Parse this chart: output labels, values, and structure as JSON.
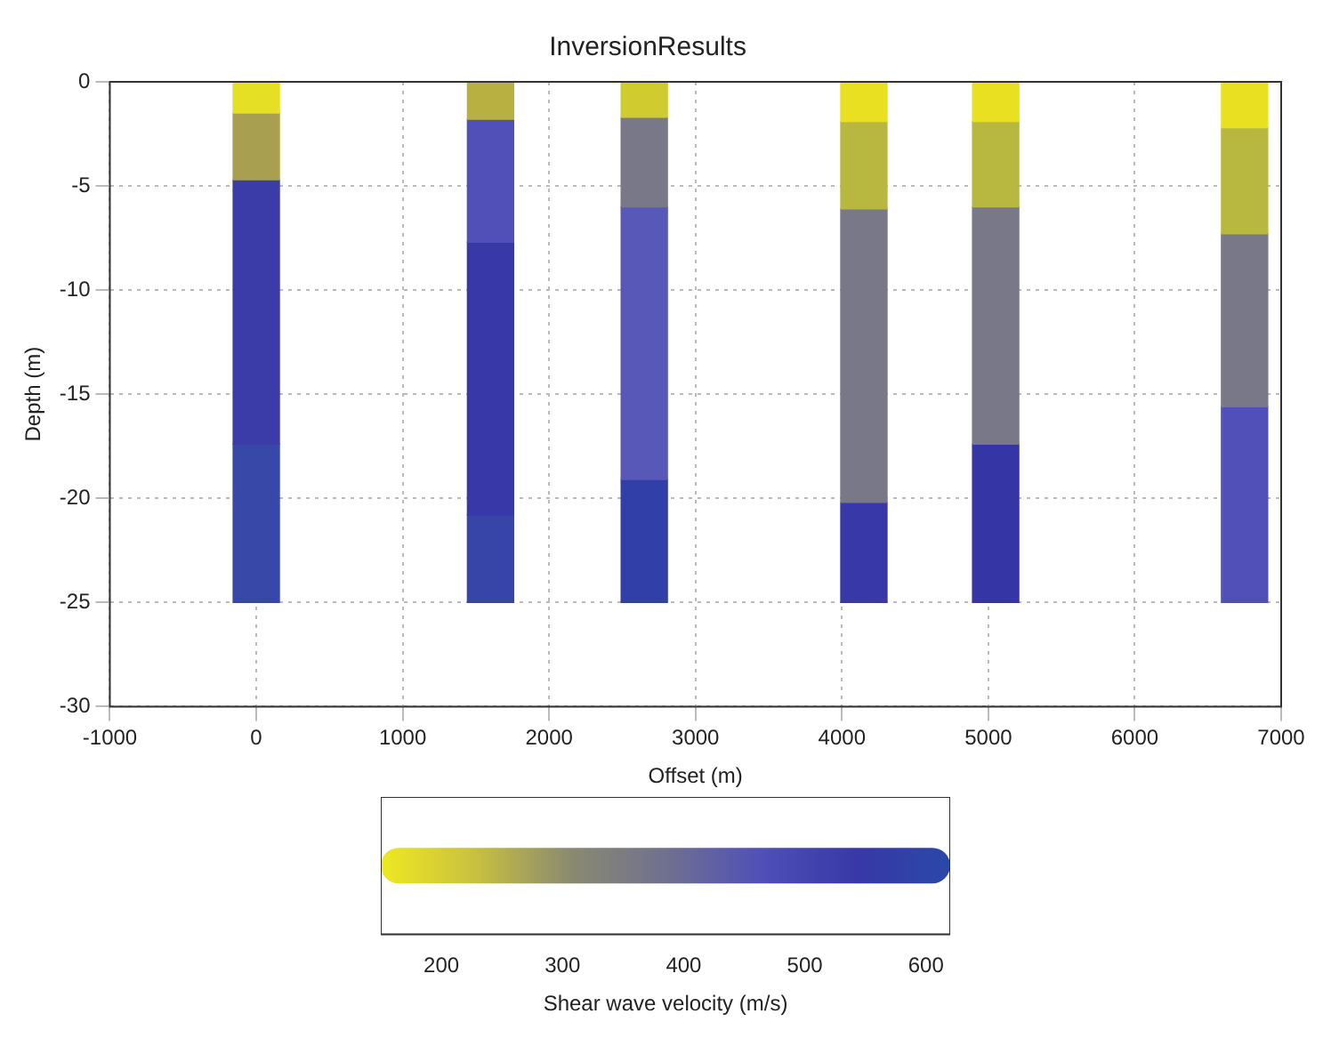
{
  "chart_data": {
    "type": "bar",
    "title": "InversionResults",
    "xlabel": "Offset (m)",
    "ylabel": "Depth (m)",
    "stacked": true,
    "x": [
      0,
      1600,
      2650,
      4150,
      5050,
      6750
    ],
    "series": [
      {
        "values": [
          -1.5,
          -1.8,
          -1.7,
          -1.9,
          -1.9,
          -2.2
        ],
        "colors": [
          "#e6e024",
          "#b8b040",
          "#d0cc30",
          "#e8e020",
          "#e8e020",
          "#e8e020"
        ]
      },
      {
        "values": [
          -3.2,
          -5.9,
          -4.3,
          -4.2,
          -4.1,
          -5.1
        ],
        "colors": [
          "#a8a050",
          "#5050b8",
          "#787888",
          "#b8b840",
          "#b8b840",
          "#b8b840"
        ]
      },
      {
        "values": [
          -12.7,
          -13.1,
          -13.1,
          -14.1,
          -11.4,
          -8.3
        ],
        "colors": [
          "#3c3ca8",
          "#3838a8",
          "#5858b8",
          "#787888",
          "#787888",
          "#787888"
        ]
      },
      {
        "values": [
          -7.6,
          -4.2,
          -5.9,
          -4.8,
          -7.6,
          -9.4
        ],
        "colors": [
          "#3848a8",
          "#3845a8",
          "#3040a8",
          "#3838a8",
          "#3535a5",
          "#5050b8"
        ]
      }
    ],
    "xlim": [
      -1000,
      7000
    ],
    "xticks": [
      -1000,
      0,
      1000,
      2000,
      3000,
      4000,
      5000,
      6000,
      7000
    ],
    "ylim": [
      -30,
      0
    ],
    "yticks": [
      -30,
      -25,
      -20,
      -15,
      -10,
      -5,
      0
    ],
    "grid": true,
    "legend": false,
    "clabel": "Shear wave velocity (m/s)",
    "clim": [
      150,
      620
    ],
    "cticks": [
      200,
      300,
      400,
      500,
      600
    ]
  }
}
